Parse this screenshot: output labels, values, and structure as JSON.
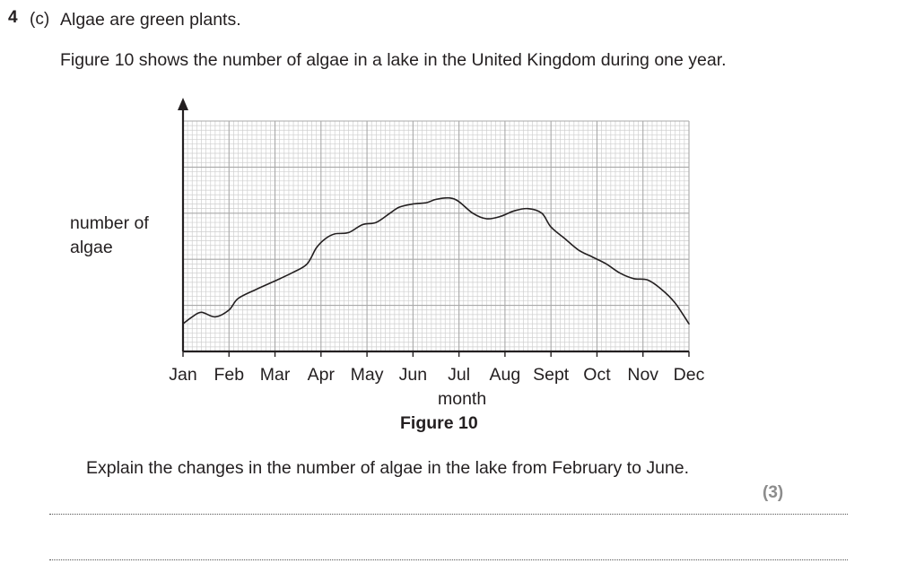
{
  "question": {
    "number": "4",
    "part": "(c)",
    "intro": "Algae are green plants.",
    "figure_description": "Figure 10 shows the number of algae in a lake in the United Kingdom during one year.",
    "figure_caption": "Figure 10",
    "prompt": "Explain the changes in the number of algae in the lake from February to June.",
    "marks": "(3)"
  },
  "chart_data": {
    "type": "line",
    "title": "",
    "xlabel": "month",
    "ylabel": "number of algae",
    "categories": [
      "Jan",
      "Feb",
      "Mar",
      "Apr",
      "May",
      "Jun",
      "Jul",
      "Aug",
      "Sept",
      "Oct",
      "Nov",
      "Dec"
    ],
    "grid": true,
    "y_tick_labels": false,
    "ylim": [
      0,
      50
    ],
    "series": [
      {
        "x": [
          0,
          0.2,
          0.4,
          0.7,
          1.0,
          1.2,
          1.6,
          2.0,
          2.4,
          2.7,
          2.9,
          3.1,
          3.3,
          3.6,
          3.9,
          4.2,
          4.5,
          4.7,
          5.0,
          5.3,
          5.5,
          5.8,
          6.0,
          6.3,
          6.6,
          6.9,
          7.2,
          7.5,
          7.8,
          8.0,
          8.3,
          8.6,
          8.9,
          9.2,
          9.5,
          9.8,
          10.1,
          10.4,
          10.7,
          11.0
        ],
        "y": [
          6.0,
          7.5,
          8.5,
          7.5,
          9.0,
          11.5,
          13.5,
          15.3,
          17.2,
          19.0,
          22.5,
          24.5,
          25.5,
          25.8,
          27.5,
          28.0,
          30.0,
          31.3,
          32.0,
          32.3,
          33.0,
          33.3,
          32.5,
          30.0,
          28.8,
          29.3,
          30.5,
          31.0,
          30.0,
          27.0,
          24.5,
          22.0,
          20.5,
          19.0,
          17.0,
          15.8,
          15.5,
          13.5,
          10.5,
          6.0
        ]
      }
    ]
  }
}
